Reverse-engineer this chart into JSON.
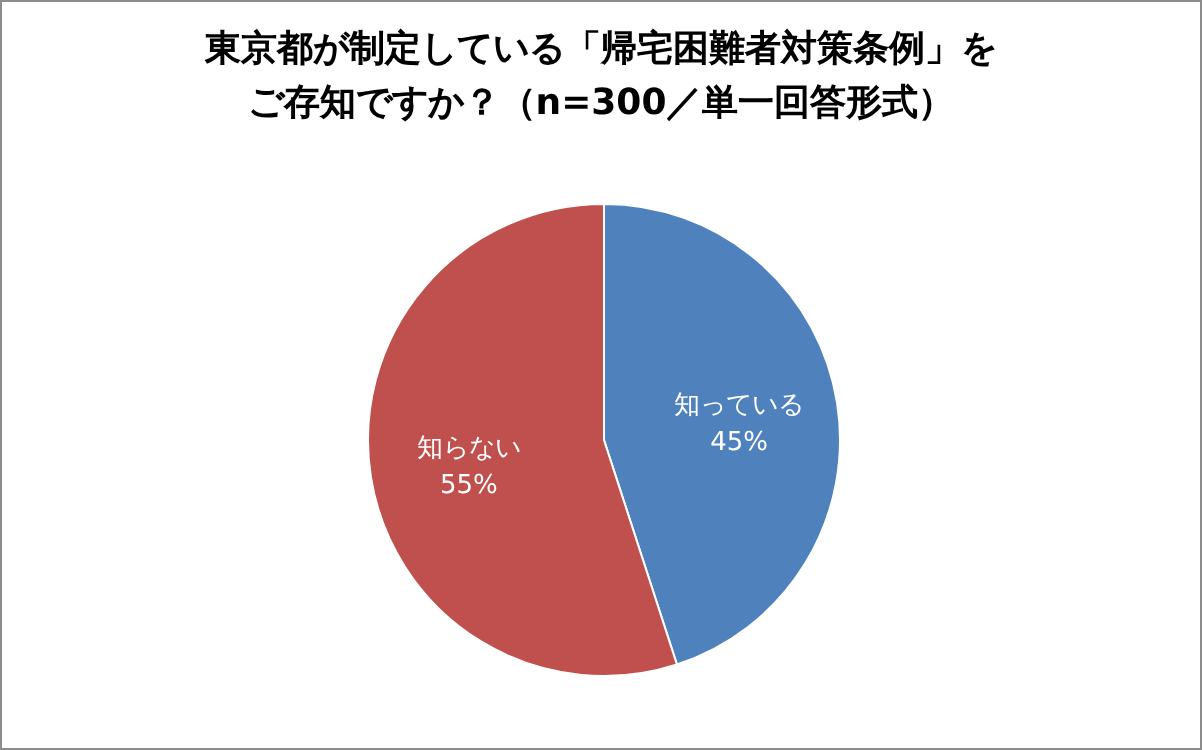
{
  "chart_data": {
    "type": "pie",
    "title": "東京都が制定している「帰宅困難者対策条例」をご存知ですか？（n=300／単一回答形式）",
    "categories": [
      "知っている",
      "知らない"
    ],
    "values": [
      45,
      55
    ],
    "value_labels": [
      "45%",
      "55%"
    ],
    "colors": [
      "#4f81bd",
      "#c0504d"
    ]
  }
}
